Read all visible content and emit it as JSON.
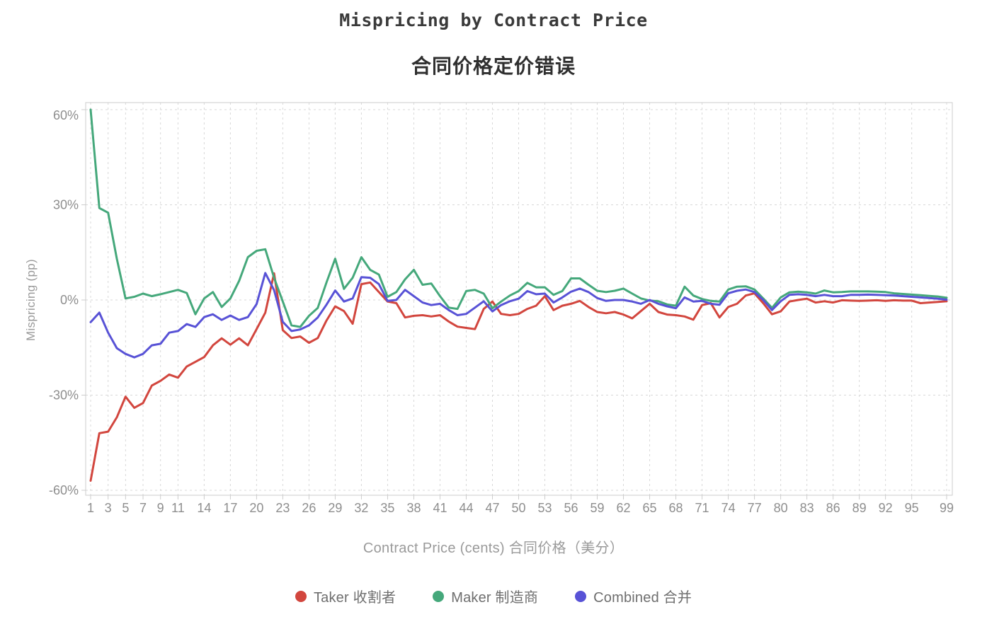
{
  "header": {
    "title": "Mispricing by Contract Price",
    "subtitle": "合同价格定价错误"
  },
  "axes": {
    "x_title": "Contract Price (cents) 合同价格（美分）",
    "y_title": "Mispricing (pp)",
    "x_ticks": [
      1,
      3,
      5,
      7,
      9,
      11,
      14,
      17,
      20,
      23,
      26,
      29,
      32,
      35,
      38,
      41,
      44,
      47,
      50,
      53,
      56,
      59,
      62,
      65,
      68,
      71,
      74,
      77,
      80,
      83,
      86,
      89,
      92,
      95,
      99
    ],
    "y_ticks": [
      {
        "value": 60,
        "label": "60%"
      },
      {
        "value": 30,
        "label": "30%"
      },
      {
        "value": 0,
        "label": "0%"
      },
      {
        "value": -30,
        "label": "-30%"
      },
      {
        "value": -60,
        "label": "-60%"
      }
    ],
    "grid": "dashed",
    "grid_color": "#d8d8d8",
    "axis_color": "#cccccc",
    "tick_label_color": "#8e8e8e"
  },
  "legend": [
    {
      "label": "Taker 收割者",
      "color": "#d2463e"
    },
    {
      "label": "Maker 制造商",
      "color": "#45a87b"
    },
    {
      "label": "Combined 合并",
      "color": "#5852d6"
    }
  ],
  "chart_data": {
    "type": "line",
    "title": "Mispricing by Contract Price",
    "subtitle": "合同价格定价错误",
    "xlabel": "Contract Price (cents) 合同价格（美分）",
    "ylabel": "Mispricing (pp)",
    "xlim": [
      1,
      99
    ],
    "ylim": [
      -60,
      60
    ],
    "legend_position": "bottom",
    "x": [
      1,
      2,
      3,
      4,
      5,
      6,
      7,
      8,
      9,
      10,
      11,
      12,
      13,
      14,
      15,
      16,
      17,
      18,
      19,
      20,
      21,
      22,
      23,
      24,
      25,
      26,
      27,
      28,
      29,
      30,
      31,
      32,
      33,
      34,
      35,
      36,
      37,
      38,
      39,
      40,
      41,
      42,
      43,
      44,
      45,
      46,
      47,
      48,
      49,
      50,
      51,
      52,
      53,
      54,
      55,
      56,
      57,
      58,
      59,
      60,
      61,
      62,
      63,
      64,
      65,
      66,
      67,
      68,
      69,
      70,
      71,
      72,
      73,
      74,
      75,
      76,
      77,
      78,
      79,
      80,
      81,
      82,
      83,
      84,
      85,
      86,
      87,
      88,
      89,
      90,
      91,
      92,
      93,
      94,
      95,
      96,
      97,
      98,
      99
    ],
    "series": [
      {
        "name": "Taker 收割者",
        "color": "#d2463e",
        "values": [
          -57,
          -42,
          -41.5,
          -37,
          -30.5,
          -34,
          -32.5,
          -27,
          -25.5,
          -23.5,
          -24.5,
          -21,
          -19.5,
          -18,
          -14.3,
          -12.1,
          -14.1,
          -12.1,
          -14.3,
          -9.2,
          -4,
          8.4,
          -9.5,
          -12,
          -11.5,
          -13.5,
          -12,
          -6.5,
          -2,
          -3.5,
          -7.5,
          5,
          5.5,
          2.5,
          -0.5,
          -1,
          -5.5,
          -5,
          -4.8,
          -5.2,
          -4.8,
          -6.8,
          -8.4,
          -8.8,
          -9.2,
          -2.8,
          -0.5,
          -4.4,
          -4.8,
          -4.4,
          -2.8,
          -1.8,
          1.2,
          -3.2,
          -1.8,
          -1.2,
          -0.3,
          -2.2,
          -3.8,
          -4.2,
          -3.8,
          -4.6,
          -5.8,
          -3.5,
          -1.2,
          -3.8,
          -4.6,
          -4.8,
          -5.2,
          -6.2,
          -1.6,
          -1,
          -5.5,
          -2.2,
          -1.2,
          1.4,
          2.1,
          -1,
          -4.5,
          -3.6,
          -0.5,
          0,
          0.4,
          -0.8,
          -0.4,
          -0.8,
          -0.1,
          -0.2,
          -0.3,
          -0.2,
          -0.1,
          -0.3,
          -0.1,
          -0.2,
          -0.2,
          -1,
          -0.8,
          -0.6,
          -0.4
        ]
      },
      {
        "name": "Maker 制造商",
        "color": "#45a87b",
        "values": [
          60,
          29,
          27.5,
          13,
          0.5,
          1,
          2,
          1.2,
          1.8,
          2.5,
          3.2,
          2.2,
          -4.5,
          0.5,
          2.5,
          -2.2,
          0.5,
          6,
          13.5,
          15.5,
          16,
          7,
          -0.5,
          -8,
          -8.5,
          -5,
          -2.5,
          5.5,
          13,
          3.5,
          7,
          13.5,
          9.5,
          8,
          1,
          2.5,
          6.5,
          9.5,
          4.8,
          5.2,
          1.2,
          -2.4,
          -2.8,
          2.8,
          3.2,
          2,
          -2.6,
          -0.5,
          1.4,
          2.8,
          5.4,
          4,
          4,
          1.6,
          2.8,
          6.8,
          6.8,
          4.8,
          2.9,
          2.5,
          2.9,
          3.6,
          2,
          0.5,
          -0.2,
          -0.4,
          -1.4,
          -1.8,
          4.2,
          1.4,
          0.3,
          -0.3,
          -0.5,
          3.3,
          4.2,
          4.3,
          3.3,
          0.5,
          -2.5,
          0.8,
          2.4,
          2.6,
          2.4,
          2,
          3,
          2.4,
          2.5,
          2.7,
          2.7,
          2.7,
          2.6,
          2.5,
          2.1,
          1.9,
          1.7,
          1.5,
          1.3,
          1.1,
          0.7
        ]
      },
      {
        "name": "Combined 合并",
        "color": "#5852d6",
        "values": [
          -7,
          -4,
          -10.3,
          -15.2,
          -17,
          -18.1,
          -17,
          -14.3,
          -13.8,
          -10.3,
          -9.8,
          -7.6,
          -8.5,
          -5.4,
          -4.5,
          -6.3,
          -4.9,
          -6.3,
          -5.4,
          -1.3,
          8.5,
          3.1,
          -6.9,
          -9.8,
          -9.3,
          -8,
          -5.5,
          -1.5,
          3,
          -0.5,
          0.5,
          7.2,
          7,
          5,
          -0.3,
          0,
          3.2,
          1.2,
          -0.8,
          -1.6,
          -1.2,
          -3.2,
          -4.8,
          -4.4,
          -2.4,
          -0.4,
          -3.6,
          -1.6,
          -0.4,
          0.4,
          2.8,
          1.8,
          2,
          -0.8,
          0.8,
          2.6,
          3.6,
          2.5,
          0.6,
          -0.3,
          0,
          0,
          -0.5,
          -1.2,
          0,
          -1.2,
          -2,
          -2.6,
          0.8,
          -0.5,
          -0.3,
          -1.2,
          -1.5,
          2.1,
          2.9,
          3.3,
          2.5,
          0,
          -3.2,
          -0.4,
          1.6,
          1.8,
          1.6,
          1.2,
          1.6,
          1.2,
          1.2,
          1.6,
          1.6,
          1.7,
          1.6,
          1.5,
          1.4,
          1.2,
          1,
          0.8,
          0.6,
          0.4,
          0.1
        ]
      }
    ]
  }
}
